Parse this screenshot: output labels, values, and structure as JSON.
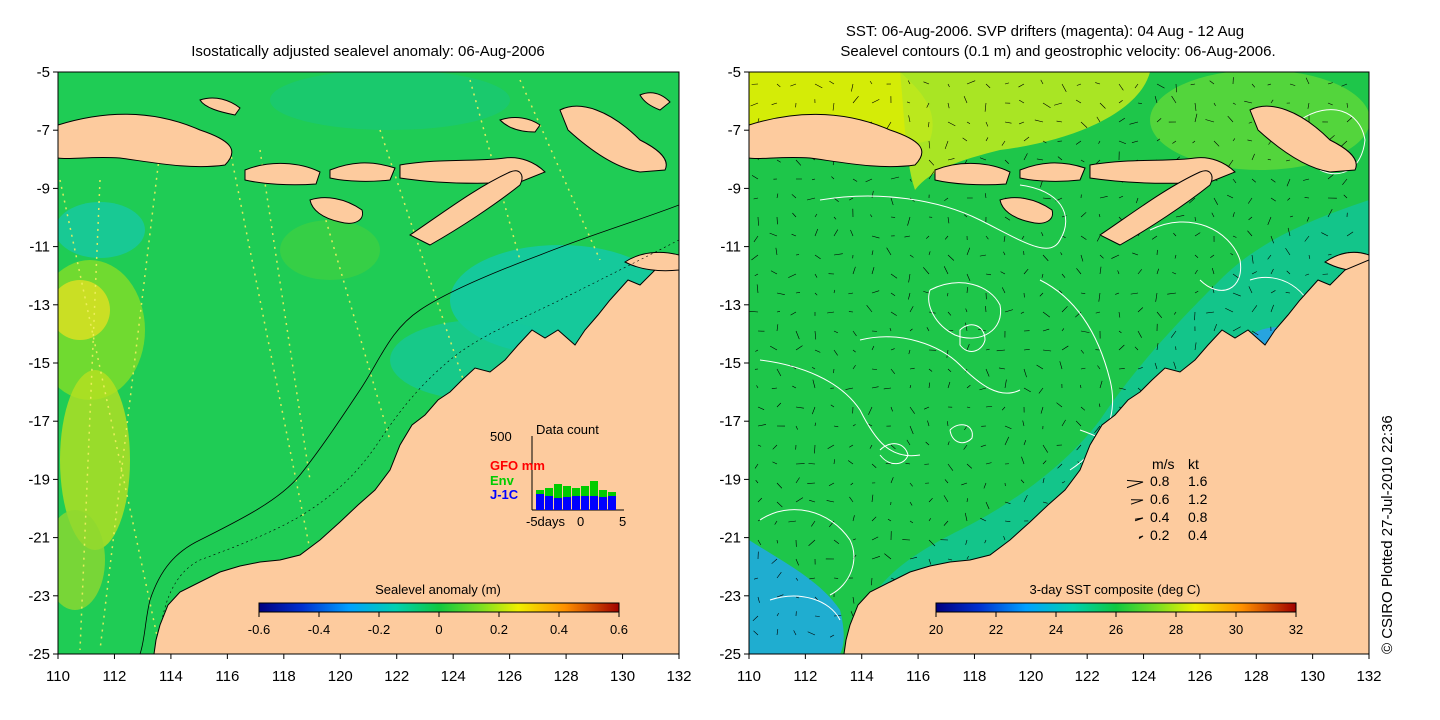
{
  "left_panel": {
    "title": "Isostatically adjusted sealevel anomaly: 06-Aug-2006",
    "colorbar_label": "Sealevel anomaly (m)",
    "colorbar_ticks": [
      "-0.6",
      "-0.4",
      "-0.2",
      "0",
      "0.2",
      "0.4",
      "0.6"
    ],
    "data_count": {
      "title": "Data count",
      "ymax_label": "500",
      "legend": [
        {
          "label": "GFO mm",
          "color": "#ff0000"
        },
        {
          "label": "Env",
          "color": "#00cc00"
        },
        {
          "label": "J-1C",
          "color": "#0000ff"
        }
      ],
      "x_ticks": [
        "-5days",
        "0",
        "5"
      ]
    }
  },
  "right_panel": {
    "title_line1": "SST: 06-Aug-2006. SVP drifters (magenta): 04 Aug - 12 Aug",
    "title_line2": "Sealevel contours (0.1 m) and geostrophic velocity: 06-Aug-2006.",
    "colorbar_label": "3-day SST composite (deg C)",
    "colorbar_ticks": [
      "20",
      "22",
      "24",
      "26",
      "28",
      "30",
      "32"
    ],
    "velocity_legend": {
      "header_ms": "m/s",
      "header_kt": "kt",
      "rows": [
        {
          "ms": "0.8",
          "kt": "1.6"
        },
        {
          "ms": "0.6",
          "kt": "1.2"
        },
        {
          "ms": "0.4",
          "kt": "0.8"
        },
        {
          "ms": "0.2",
          "kt": "0.4"
        }
      ]
    }
  },
  "axes": {
    "lon_ticks": [
      "110",
      "112",
      "114",
      "116",
      "118",
      "120",
      "122",
      "124",
      "126",
      "128",
      "130",
      "132"
    ],
    "lat_ticks": [
      "-5",
      "-7",
      "-9",
      "-11",
      "-13",
      "-15",
      "-17",
      "-19",
      "-21",
      "-23",
      "-25"
    ],
    "lon_range": [
      110,
      132
    ],
    "lat_range": [
      -25,
      -5
    ]
  },
  "credit": "© CSIRO Plotted 27-Jul-2010 22:36",
  "colors": {
    "land": "#fdcb9e",
    "sla_ocean": "#1fcc55",
    "sst_ocean": "#1ec64a"
  }
}
